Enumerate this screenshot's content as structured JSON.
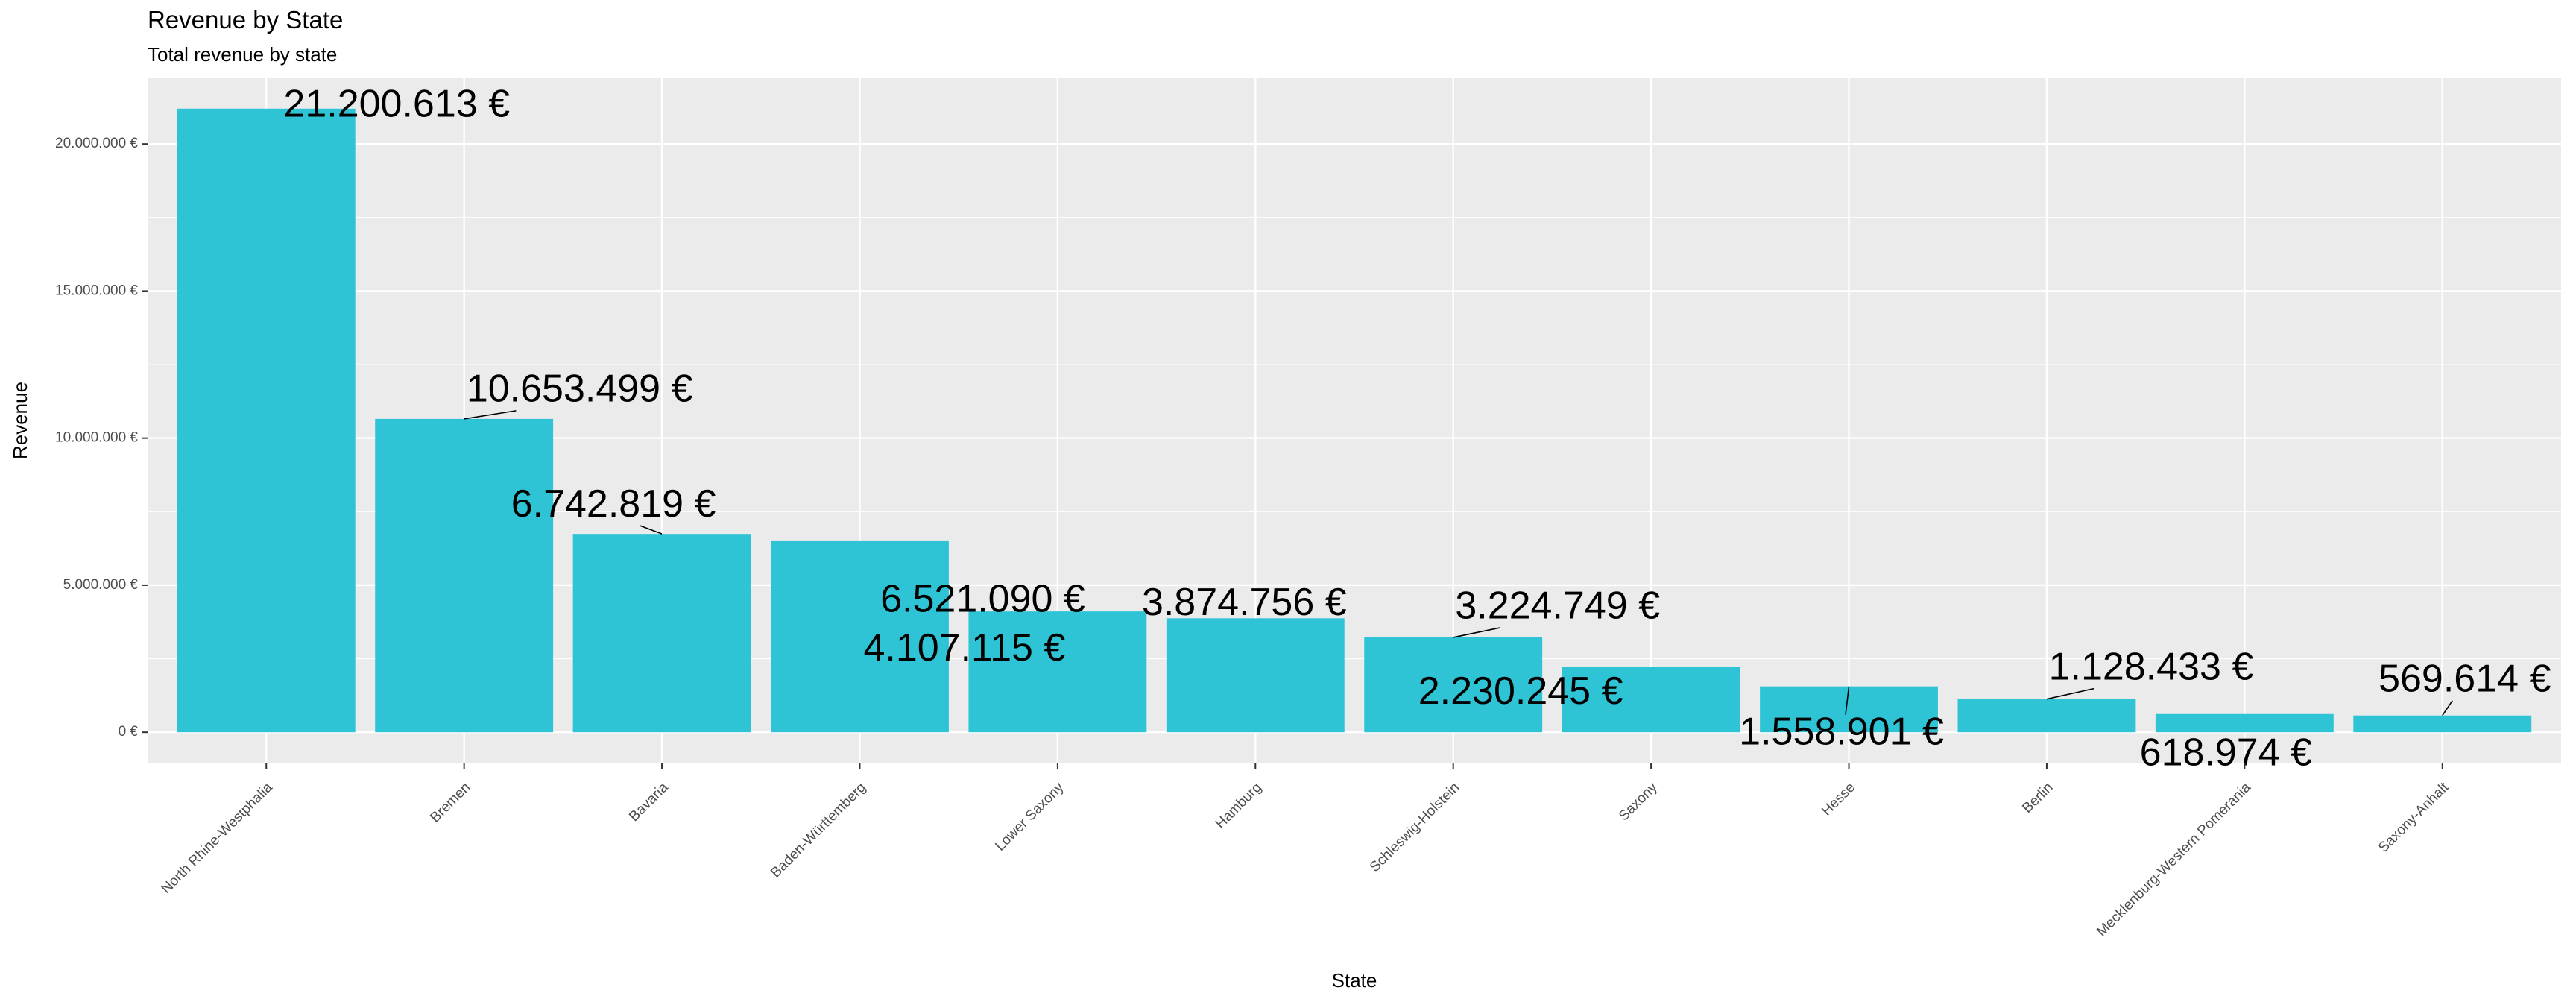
{
  "chart_data": {
    "type": "bar",
    "title": "Revenue by State",
    "subtitle": "Total revenue by state",
    "xlabel": "State",
    "ylabel": "Revenue",
    "categories": [
      "North Rhine-Westphalia",
      "Bremen",
      "Bavaria",
      "Baden-Württemberg",
      "Lower Saxony",
      "Hamburg",
      "Schleswig-Holstein",
      "Saxony",
      "Hesse",
      "Berlin",
      "Mecklenburg-Western Pomerania",
      "Saxony-Anhalt"
    ],
    "values": [
      21200613,
      10653499,
      6742819,
      6521090,
      4107115,
      3874756,
      3224749,
      2230245,
      1558901,
      1128433,
      618974,
      569614
    ],
    "value_labels": [
      "21.200.613 €",
      "10.653.499 €",
      "6.742.819 €",
      "6.521.090 €",
      "4.107.115 €",
      "3.874.756 €",
      "3.224.749 €",
      "2.230.245 €",
      "1.558.901 €",
      "1.128.433 €",
      "618.974 €",
      "569.614 €"
    ],
    "ylim": [
      -1060000,
      22260000
    ],
    "y_ticks": [
      0,
      5000000,
      10000000,
      15000000,
      20000000
    ],
    "y_tick_labels": [
      "0 €",
      "5.000.000 €",
      "10.000.000 €",
      "15.000.000 €",
      "20.000.000 €"
    ],
    "grid": true,
    "legend": "none",
    "bar_color": "#2EC4D6",
    "panel_background": "#EBEBEB",
    "grid_color": "#FFFFFF"
  }
}
